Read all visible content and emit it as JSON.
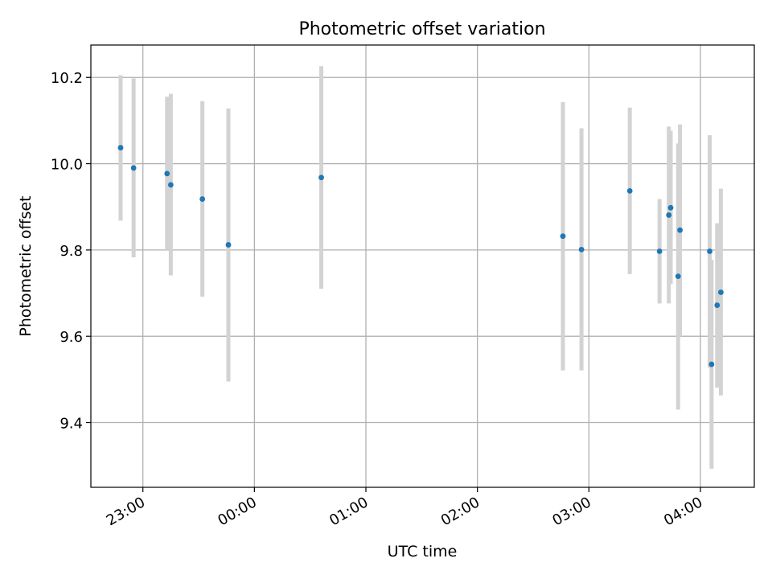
{
  "chart_data": {
    "type": "scatter",
    "title": "Photometric offset variation",
    "xlabel": "UTC time",
    "ylabel": "Photometric offset",
    "xlim": [
      "22:32",
      "04:29"
    ],
    "ylim": [
      9.25,
      10.275
    ],
    "grid": true,
    "legend": "none",
    "x_ticks": [
      "23:00",
      "00:00",
      "01:00",
      "02:00",
      "03:00",
      "04:00"
    ],
    "y_ticks": [
      "9.4",
      "9.6",
      "9.8",
      "10.0",
      "10.2"
    ],
    "colors": {
      "point": "#1f77b4",
      "errorbar": "#d3d3d3",
      "grid": "#b0b0b0",
      "axis": "#000000"
    },
    "points": [
      {
        "time": "22:48",
        "y": 10.037,
        "err_low": 9.868,
        "err_high": 10.205
      },
      {
        "time": "22:55",
        "y": 9.99,
        "err_low": 9.783,
        "err_high": 10.198
      },
      {
        "time": "23:13",
        "y": 9.977,
        "err_low": 9.8,
        "err_high": 10.155
      },
      {
        "time": "23:15",
        "y": 9.951,
        "err_low": 9.741,
        "err_high": 10.162
      },
      {
        "time": "23:32",
        "y": 9.918,
        "err_low": 9.692,
        "err_high": 10.145
      },
      {
        "time": "23:46",
        "y": 9.812,
        "err_low": 9.495,
        "err_high": 10.128
      },
      {
        "time": "00:36",
        "y": 9.968,
        "err_low": 9.71,
        "err_high": 10.226
      },
      {
        "time": "02:46",
        "y": 9.832,
        "err_low": 9.521,
        "err_high": 10.143
      },
      {
        "time": "02:56",
        "y": 9.801,
        "err_low": 9.521,
        "err_high": 10.082
      },
      {
        "time": "03:22",
        "y": 9.937,
        "err_low": 9.744,
        "err_high": 10.13
      },
      {
        "time": "03:38",
        "y": 9.797,
        "err_low": 9.676,
        "err_high": 9.918
      },
      {
        "time": "03:43",
        "y": 9.881,
        "err_low": 9.676,
        "err_high": 10.086
      },
      {
        "time": "03:44",
        "y": 9.898,
        "err_low": 9.721,
        "err_high": 10.076
      },
      {
        "time": "03:48",
        "y": 9.739,
        "err_low": 9.43,
        "err_high": 10.047
      },
      {
        "time": "03:49",
        "y": 9.846,
        "err_low": 9.6,
        "err_high": 10.091
      },
      {
        "time": "04:05",
        "y": 9.797,
        "err_low": 9.527,
        "err_high": 10.066
      },
      {
        "time": "04:06",
        "y": 9.535,
        "err_low": 9.293,
        "err_high": 9.777
      },
      {
        "time": "04:09",
        "y": 9.672,
        "err_low": 9.481,
        "err_high": 9.862
      },
      {
        "time": "04:11",
        "y": 9.702,
        "err_low": 9.463,
        "err_high": 9.942
      }
    ]
  }
}
